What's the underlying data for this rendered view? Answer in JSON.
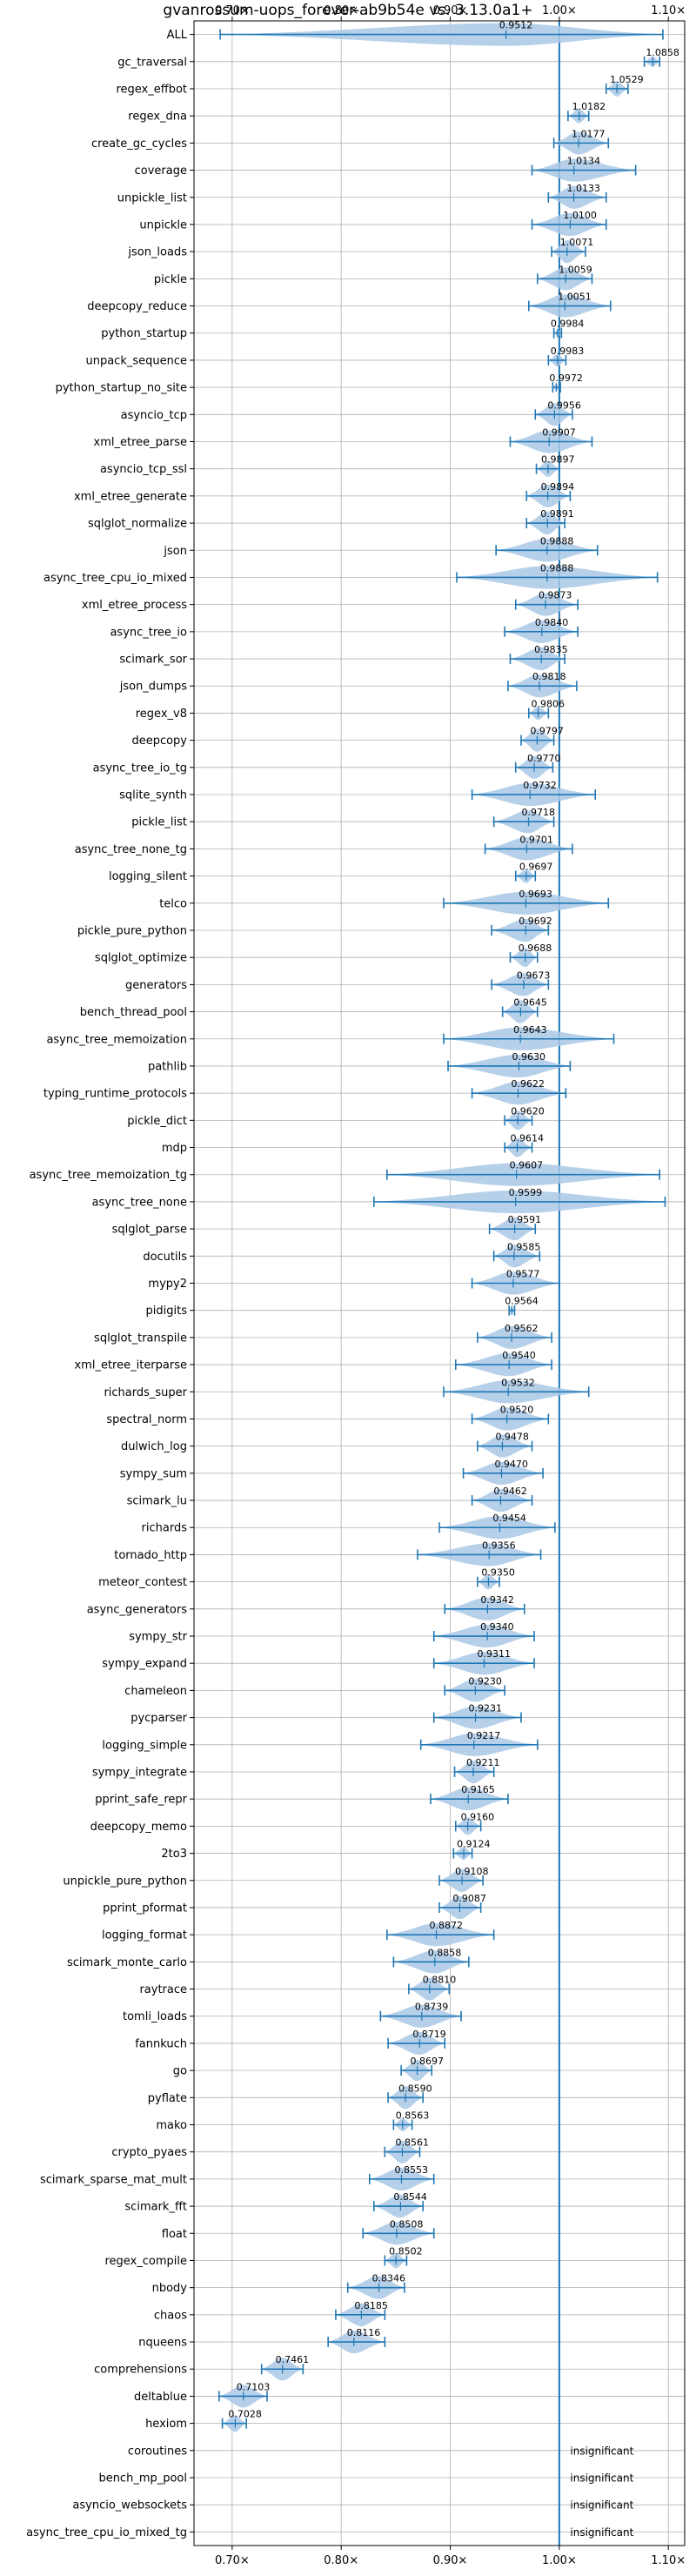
{
  "chart_data": {
    "type": "violin",
    "title": "gvanrossum-uops_forever-ab9b54e vs. 3.13.0a1+",
    "xlabel": "",
    "ylabel": "",
    "xlim": [
      0.665,
      1.115
    ],
    "xticks": [
      0.7,
      0.8,
      0.9,
      1.0,
      1.1
    ],
    "xtick_labels": [
      "0.70×",
      "0.80×",
      "0.90×",
      "1.00×",
      "1.10×"
    ],
    "reference_line": 1.0,
    "grid": true,
    "colors": {
      "violin": "#a9c8e6",
      "whisker": "#1f77b4",
      "reference": "#1f77b4",
      "grid": "#b0b0b0"
    },
    "insignificant_label": "insignificant",
    "benchmarks": [
      {
        "name": "ALL",
        "label": "0.9512",
        "min": 0.689,
        "max": 1.095
      },
      {
        "name": "gc_traversal",
        "label": "1.0858",
        "min": 1.078,
        "max": 1.092
      },
      {
        "name": "regex_effbot",
        "label": "1.0529",
        "min": 1.043,
        "max": 1.063
      },
      {
        "name": "regex_dna",
        "label": "1.0182",
        "min": 1.008,
        "max": 1.027
      },
      {
        "name": "create_gc_cycles",
        "label": "1.0177",
        "min": 0.995,
        "max": 1.045
      },
      {
        "name": "coverage",
        "label": "1.0134",
        "min": 0.975,
        "max": 1.07
      },
      {
        "name": "unpickle_list",
        "label": "1.0133",
        "min": 0.99,
        "max": 1.043
      },
      {
        "name": "unpickle",
        "label": "1.0100",
        "min": 0.975,
        "max": 1.043
      },
      {
        "name": "json_loads",
        "label": "1.0071",
        "min": 0.993,
        "max": 1.024
      },
      {
        "name": "pickle",
        "label": "1.0059",
        "min": 0.98,
        "max": 1.03
      },
      {
        "name": "deepcopy_reduce",
        "label": "1.0051",
        "min": 0.972,
        "max": 1.047
      },
      {
        "name": "python_startup",
        "label": "0.9984",
        "min": 0.995,
        "max": 1.002
      },
      {
        "name": "unpack_sequence",
        "label": "0.9983",
        "min": 0.99,
        "max": 1.006
      },
      {
        "name": "python_startup_no_site",
        "label": "0.9972",
        "min": 0.994,
        "max": 1.001
      },
      {
        "name": "asyncio_tcp",
        "label": "0.9956",
        "min": 0.978,
        "max": 1.012
      },
      {
        "name": "xml_etree_parse",
        "label": "0.9907",
        "min": 0.955,
        "max": 1.03
      },
      {
        "name": "asyncio_tcp_ssl",
        "label": "0.9897",
        "min": 0.979,
        "max": 1.0
      },
      {
        "name": "xml_etree_generate",
        "label": "0.9894",
        "min": 0.97,
        "max": 1.01
      },
      {
        "name": "sqlglot_normalize",
        "label": "0.9891",
        "min": 0.97,
        "max": 1.005
      },
      {
        "name": "json",
        "label": "0.9888",
        "min": 0.942,
        "max": 1.035
      },
      {
        "name": "async_tree_cpu_io_mixed",
        "label": "0.9888",
        "min": 0.906,
        "max": 1.09
      },
      {
        "name": "xml_etree_process",
        "label": "0.9873",
        "min": 0.96,
        "max": 1.017
      },
      {
        "name": "async_tree_io",
        "label": "0.9840",
        "min": 0.95,
        "max": 1.017
      },
      {
        "name": "scimark_sor",
        "label": "0.9835",
        "min": 0.955,
        "max": 1.005
      },
      {
        "name": "json_dumps",
        "label": "0.9818",
        "min": 0.953,
        "max": 1.016
      },
      {
        "name": "regex_v8",
        "label": "0.9806",
        "min": 0.972,
        "max": 0.99
      },
      {
        "name": "deepcopy",
        "label": "0.9797",
        "min": 0.965,
        "max": 0.995
      },
      {
        "name": "async_tree_io_tg",
        "label": "0.9770",
        "min": 0.96,
        "max": 0.994
      },
      {
        "name": "sqlite_synth",
        "label": "0.9732",
        "min": 0.92,
        "max": 1.033
      },
      {
        "name": "pickle_list",
        "label": "0.9718",
        "min": 0.94,
        "max": 0.995
      },
      {
        "name": "async_tree_none_tg",
        "label": "0.9701",
        "min": 0.932,
        "max": 1.012
      },
      {
        "name": "logging_silent",
        "label": "0.9697",
        "min": 0.96,
        "max": 0.978
      },
      {
        "name": "telco",
        "label": "0.9693",
        "min": 0.894,
        "max": 1.045
      },
      {
        "name": "pickle_pure_python",
        "label": "0.9692",
        "min": 0.938,
        "max": 0.99
      },
      {
        "name": "sqlglot_optimize",
        "label": "0.9688",
        "min": 0.955,
        "max": 0.98
      },
      {
        "name": "generators",
        "label": "0.9673",
        "min": 0.938,
        "max": 0.99
      },
      {
        "name": "bench_thread_pool",
        "label": "0.9645",
        "min": 0.948,
        "max": 0.98
      },
      {
        "name": "async_tree_memoization",
        "label": "0.9643",
        "min": 0.894,
        "max": 1.05
      },
      {
        "name": "pathlib",
        "label": "0.9630",
        "min": 0.898,
        "max": 1.01
      },
      {
        "name": "typing_runtime_protocols",
        "label": "0.9622",
        "min": 0.92,
        "max": 1.006
      },
      {
        "name": "pickle_dict",
        "label": "0.9620",
        "min": 0.95,
        "max": 0.975
      },
      {
        "name": "mdp",
        "label": "0.9614",
        "min": 0.95,
        "max": 0.975
      },
      {
        "name": "async_tree_memoization_tg",
        "label": "0.9607",
        "min": 0.842,
        "max": 1.092
      },
      {
        "name": "async_tree_none",
        "label": "0.9599",
        "min": 0.83,
        "max": 1.097
      },
      {
        "name": "sqlglot_parse",
        "label": "0.9591",
        "min": 0.936,
        "max": 0.978
      },
      {
        "name": "docutils",
        "label": "0.9585",
        "min": 0.94,
        "max": 0.982
      },
      {
        "name": "mypy2",
        "label": "0.9577",
        "min": 0.92,
        "max": 1.0
      },
      {
        "name": "pidigits",
        "label": "0.9564",
        "min": 0.954,
        "max": 0.959
      },
      {
        "name": "sqlglot_transpile",
        "label": "0.9562",
        "min": 0.925,
        "max": 0.993
      },
      {
        "name": "xml_etree_iterparse",
        "label": "0.9540",
        "min": 0.905,
        "max": 0.993
      },
      {
        "name": "richards_super",
        "label": "0.9532",
        "min": 0.894,
        "max": 1.027
      },
      {
        "name": "spectral_norm",
        "label": "0.9520",
        "min": 0.92,
        "max": 0.99
      },
      {
        "name": "dulwich_log",
        "label": "0.9478",
        "min": 0.925,
        "max": 0.975
      },
      {
        "name": "sympy_sum",
        "label": "0.9470",
        "min": 0.912,
        "max": 0.985
      },
      {
        "name": "scimark_lu",
        "label": "0.9462",
        "min": 0.92,
        "max": 0.975
      },
      {
        "name": "richards",
        "label": "0.9454",
        "min": 0.89,
        "max": 0.996
      },
      {
        "name": "tornado_http",
        "label": "0.9356",
        "min": 0.87,
        "max": 0.983
      },
      {
        "name": "meteor_contest",
        "label": "0.9350",
        "min": 0.925,
        "max": 0.945
      },
      {
        "name": "async_generators",
        "label": "0.9342",
        "min": 0.895,
        "max": 0.968
      },
      {
        "name": "sympy_str",
        "label": "0.9340",
        "min": 0.885,
        "max": 0.977
      },
      {
        "name": "sympy_expand",
        "label": "0.9311",
        "min": 0.885,
        "max": 0.977
      },
      {
        "name": "chameleon",
        "label": "0.9230",
        "min": 0.895,
        "max": 0.95
      },
      {
        "name": "pycparser",
        "label": "0.9231",
        "min": 0.885,
        "max": 0.965
      },
      {
        "name": "logging_simple",
        "label": "0.9217",
        "min": 0.873,
        "max": 0.98
      },
      {
        "name": "sympy_integrate",
        "label": "0.9211",
        "min": 0.904,
        "max": 0.94
      },
      {
        "name": "pprint_safe_repr",
        "label": "0.9165",
        "min": 0.882,
        "max": 0.953
      },
      {
        "name": "deepcopy_memo",
        "label": "0.9160",
        "min": 0.905,
        "max": 0.928
      },
      {
        "name": "2to3",
        "label": "0.9124",
        "min": 0.903,
        "max": 0.92
      },
      {
        "name": "unpickle_pure_python",
        "label": "0.9108",
        "min": 0.89,
        "max": 0.93
      },
      {
        "name": "pprint_pformat",
        "label": "0.9087",
        "min": 0.89,
        "max": 0.928
      },
      {
        "name": "logging_format",
        "label": "0.8872",
        "min": 0.842,
        "max": 0.94
      },
      {
        "name": "scimark_monte_carlo",
        "label": "0.8858",
        "min": 0.848,
        "max": 0.917
      },
      {
        "name": "raytrace",
        "label": "0.8810",
        "min": 0.862,
        "max": 0.899
      },
      {
        "name": "tomli_loads",
        "label": "0.8739",
        "min": 0.836,
        "max": 0.91
      },
      {
        "name": "fannkuch",
        "label": "0.8719",
        "min": 0.843,
        "max": 0.895
      },
      {
        "name": "go",
        "label": "0.8697",
        "min": 0.855,
        "max": 0.883
      },
      {
        "name": "pyflate",
        "label": "0.8590",
        "min": 0.843,
        "max": 0.875
      },
      {
        "name": "mako",
        "label": "0.8563",
        "min": 0.848,
        "max": 0.865
      },
      {
        "name": "crypto_pyaes",
        "label": "0.8561",
        "min": 0.84,
        "max": 0.872
      },
      {
        "name": "scimark_sparse_mat_mult",
        "label": "0.8553",
        "min": 0.826,
        "max": 0.885
      },
      {
        "name": "scimark_fft",
        "label": "0.8544",
        "min": 0.83,
        "max": 0.875
      },
      {
        "name": "float",
        "label": "0.8508",
        "min": 0.82,
        "max": 0.885
      },
      {
        "name": "regex_compile",
        "label": "0.8502",
        "min": 0.84,
        "max": 0.86
      },
      {
        "name": "nbody",
        "label": "0.8346",
        "min": 0.806,
        "max": 0.858
      },
      {
        "name": "chaos",
        "label": "0.8185",
        "min": 0.795,
        "max": 0.84
      },
      {
        "name": "nqueens",
        "label": "0.8116",
        "min": 0.788,
        "max": 0.84
      },
      {
        "name": "comprehensions",
        "label": "0.7461",
        "min": 0.727,
        "max": 0.765
      },
      {
        "name": "deltablue",
        "label": "0.7103",
        "min": 0.688,
        "max": 0.732
      },
      {
        "name": "hexiom",
        "label": "0.7028",
        "min": 0.691,
        "max": 0.713
      },
      {
        "name": "coroutines",
        "label": "insignificant",
        "min": null,
        "max": null
      },
      {
        "name": "bench_mp_pool",
        "label": "insignificant",
        "min": null,
        "max": null
      },
      {
        "name": "asyncio_websockets",
        "label": "insignificant",
        "min": null,
        "max": null
      },
      {
        "name": "async_tree_cpu_io_mixed_tg",
        "label": "insignificant",
        "min": null,
        "max": null
      }
    ]
  }
}
